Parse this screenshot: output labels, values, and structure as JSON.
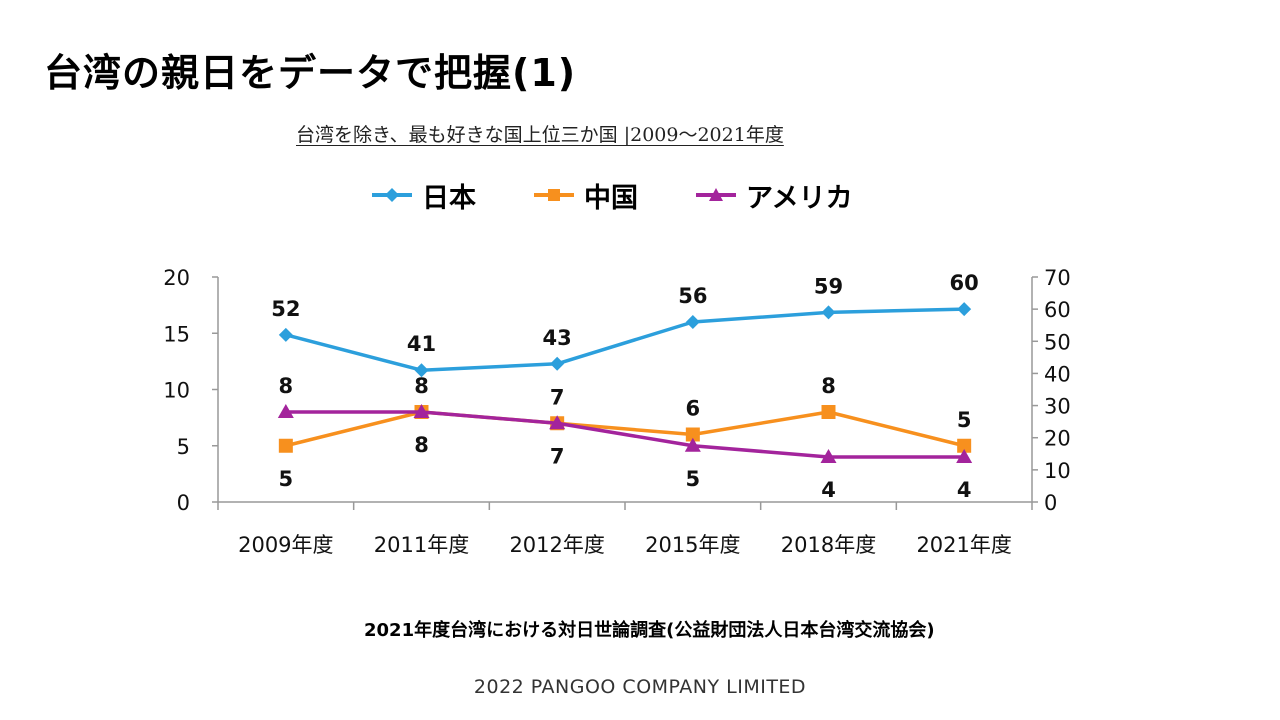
{
  "slide": {
    "title": "台湾の親日をデータで把握(1)",
    "source": "2021年度台湾における対日世論調査(公益財団法人日本台湾交流協会)",
    "footer": "2022 PANGOO COMPANY LIMITED"
  },
  "chart_data": {
    "type": "line",
    "title": "台湾を除き、最も好きな国上位三か国 |2009～2021年度",
    "categories": [
      "2009年度",
      "2011年度",
      "2012年度",
      "2015年度",
      "2018年度",
      "2021年度"
    ],
    "y_left": {
      "range": [
        0,
        20
      ],
      "ticks": [
        0,
        5,
        10,
        15,
        20
      ]
    },
    "y_right": {
      "range": [
        0,
        70
      ],
      "ticks": [
        0,
        10,
        20,
        30,
        40,
        50,
        60,
        70
      ]
    },
    "grid": false,
    "legend_position": "top",
    "series": [
      {
        "name": "日本",
        "axis": "right",
        "values": [
          52,
          41,
          43,
          56,
          59,
          60
        ],
        "color": "#2c9fdc",
        "marker": "diamond",
        "label_position": "above"
      },
      {
        "name": "中国",
        "axis": "left",
        "values": [
          5,
          8,
          7,
          6,
          8,
          5
        ],
        "color": "#f7901e",
        "marker": "square",
        "label_position": "mixed"
      },
      {
        "name": "アメリカ",
        "axis": "left",
        "values": [
          8,
          8,
          7,
          5,
          4,
          4
        ],
        "color": "#a3249c",
        "marker": "triangle",
        "label_position": "mixed"
      }
    ]
  }
}
